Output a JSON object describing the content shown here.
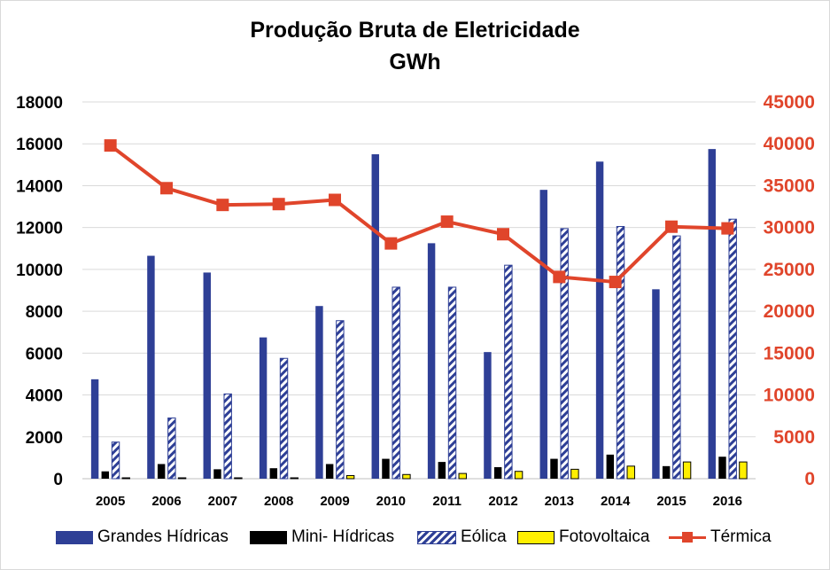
{
  "chart_data": {
    "type": "bar",
    "title": "Produção Bruta de Eletricidade",
    "subtitle": "GWh",
    "categories": [
      "2005",
      "2006",
      "2007",
      "2008",
      "2009",
      "2010",
      "2011",
      "2012",
      "2013",
      "2014",
      "2015",
      "2016"
    ],
    "y_left": {
      "min": 0,
      "max": 18000,
      "ticks": [
        "0",
        "2000",
        "4000",
        "6000",
        "8000",
        "10000",
        "12000",
        "14000",
        "16000",
        "18000"
      ]
    },
    "y_right": {
      "min": 0,
      "max": 45000,
      "ticks": [
        "0",
        "5000",
        "10000",
        "15000",
        "20000",
        "25000",
        "30000",
        "35000",
        "40000",
        "45000"
      ]
    },
    "grid": true,
    "legend_position": "bottom",
    "series": [
      {
        "name": "Grandes Hídricas",
        "type": "bar",
        "axis": "left",
        "color": "#2e3f96",
        "values": [
          4750,
          10650,
          9850,
          6750,
          8250,
          15500,
          11250,
          6050,
          13800,
          15150,
          9050,
          15750
        ]
      },
      {
        "name": "Mini- Hídricas",
        "type": "bar",
        "axis": "left",
        "color": "#000000",
        "values": [
          350,
          700,
          450,
          500,
          700,
          950,
          800,
          550,
          950,
          1150,
          600,
          1050
        ]
      },
      {
        "name": "Eólica",
        "type": "bar",
        "axis": "left",
        "color": "#2e3f96",
        "pattern": "diagonal-hatch",
        "values": [
          1750,
          2900,
          4050,
          5750,
          7550,
          9150,
          9150,
          10200,
          11950,
          12050,
          11600,
          12400
        ]
      },
      {
        "name": "Fotovoltaica",
        "type": "bar",
        "axis": "left",
        "color": "#ffef00",
        "values": [
          20,
          30,
          30,
          40,
          150,
          200,
          250,
          350,
          450,
          600,
          800,
          800
        ]
      },
      {
        "name": "Térmica",
        "type": "line",
        "axis": "right",
        "color": "#e0452b",
        "values": [
          39800,
          34700,
          32700,
          32800,
          33300,
          28100,
          30700,
          29200,
          24100,
          23500,
          30100,
          29900
        ]
      }
    ]
  }
}
